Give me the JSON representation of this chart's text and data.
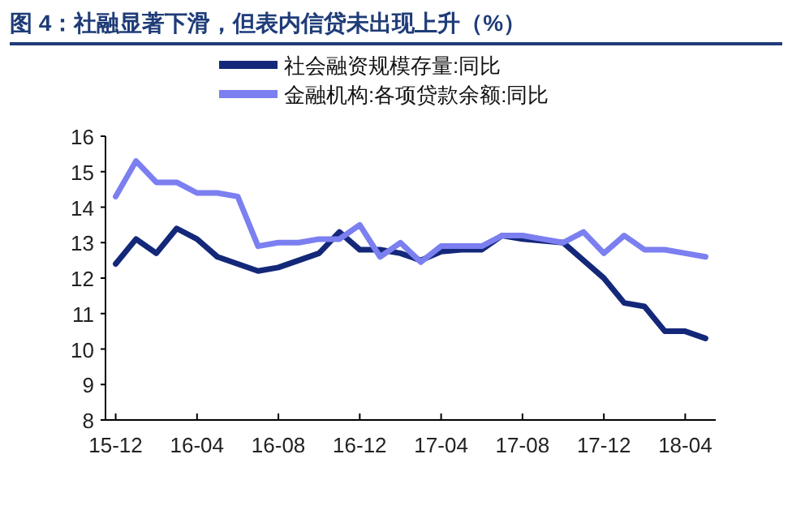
{
  "chart_data": {
    "type": "line",
    "title": "图 4：社融显著下滑，但表内信贷未出现上升（%）",
    "categories": [
      "15-12",
      null,
      null,
      null,
      "16-04",
      null,
      null,
      null,
      "16-08",
      null,
      null,
      null,
      "16-12",
      null,
      null,
      null,
      "17-04",
      null,
      null,
      null,
      "17-08",
      null,
      null,
      null,
      "17-12",
      null,
      null,
      null,
      "18-04",
      null
    ],
    "series": [
      {
        "name": "社会融资规模存量:同比",
        "color": "#14287a",
        "values": [
          12.4,
          13.1,
          12.7,
          13.4,
          13.1,
          12.6,
          12.4,
          12.2,
          12.3,
          12.5,
          12.7,
          13.3,
          12.8,
          12.8,
          12.7,
          12.5,
          12.75,
          12.8,
          12.8,
          13.2,
          13.1,
          13.05,
          13.0,
          12.5,
          12.0,
          11.3,
          11.2,
          10.5,
          10.5,
          10.3
        ]
      },
      {
        "name": "金融机构:各项贷款余额:同比",
        "color": "#7b7ff0",
        "values": [
          14.3,
          15.3,
          14.7,
          14.7,
          14.4,
          14.4,
          14.3,
          12.9,
          13.0,
          13.0,
          13.1,
          13.1,
          13.5,
          12.6,
          13.0,
          12.45,
          12.9,
          12.9,
          12.9,
          13.2,
          13.2,
          13.1,
          13.0,
          13.3,
          12.7,
          13.2,
          12.8,
          12.8,
          12.7,
          12.6
        ]
      }
    ],
    "ylim": [
      8,
      16
    ],
    "yticks": [
      8,
      9,
      10,
      11,
      12,
      13,
      14,
      15,
      16
    ],
    "grid": false,
    "legend": "top",
    "marker": "none",
    "line_style": "solid"
  }
}
